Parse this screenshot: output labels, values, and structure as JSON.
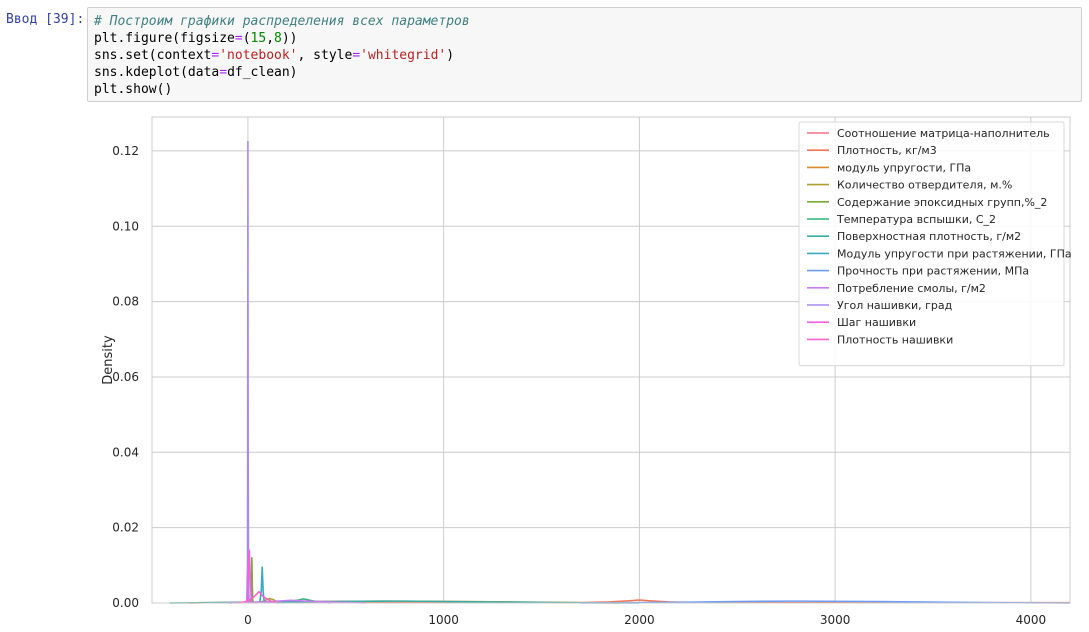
{
  "cell": {
    "prompt": "Ввод [39]:",
    "code_lines": [
      [
        {
          "t": "# Построим графики распределения всех параметров",
          "c": "comment"
        }
      ],
      [
        {
          "t": "plt.figure(figsize"
        },
        {
          "t": "=",
          "c": "op"
        },
        {
          "t": "("
        },
        {
          "t": "15",
          "c": "number"
        },
        {
          "t": ","
        },
        {
          "t": "8",
          "c": "number"
        },
        {
          "t": "))"
        }
      ],
      [
        {
          "t": "sns.set(context"
        },
        {
          "t": "=",
          "c": "op"
        },
        {
          "t": "'notebook'",
          "c": "string"
        },
        {
          "t": ", style"
        },
        {
          "t": "=",
          "c": "op"
        },
        {
          "t": "'whitegrid'",
          "c": "string"
        },
        {
          "t": ")"
        }
      ],
      [
        {
          "t": "sns.kdeplot(data"
        },
        {
          "t": "=",
          "c": "op"
        },
        {
          "t": "df_clean)"
        }
      ],
      [
        {
          "t": "plt.show()"
        }
      ]
    ]
  },
  "chart_data": {
    "type": "line",
    "title": "",
    "xlabel": "",
    "ylabel": "Density",
    "xlim": [
      -490,
      4200
    ],
    "ylim": [
      0,
      0.129
    ],
    "xticks": [
      0,
      1000,
      2000,
      3000,
      4000
    ],
    "yticks": [
      0.0,
      0.02,
      0.04,
      0.06,
      0.08,
      0.1,
      0.12
    ],
    "ytick_labels": [
      "0.00",
      "0.02",
      "0.04",
      "0.06",
      "0.08",
      "0.10",
      "0.12"
    ],
    "grid": true,
    "legend_position": "top-right",
    "series": [
      {
        "name": "Соотношение матрица-наполнитель",
        "color": "#f77189",
        "x": [
          -1,
          0,
          1.5,
          2.8,
          4,
          6
        ],
        "y": [
          0,
          0.004,
          0.035,
          0.012,
          0.002,
          0
        ]
      },
      {
        "name": "Плотность, кг/м3",
        "color": "#f7754f",
        "x": [
          -250,
          1700,
          1850,
          1950,
          2000,
          2050,
          2150,
          2300,
          4200
        ],
        "y": [
          0.0001,
          0.0001,
          0.0003,
          0.0006,
          0.0008,
          0.0006,
          0.0003,
          0.0001,
          0.0001
        ]
      },
      {
        "name": "модуль упругости, ГПа",
        "color": "#dc8932",
        "x": [
          -300,
          0,
          300,
          700,
          1100,
          1500,
          1900
        ],
        "y": [
          0,
          0.0002,
          0.0004,
          0.0005,
          0.0004,
          0.0002,
          0
        ]
      },
      {
        "name": "Количество отвердителя, м.%",
        "color": "#ae9d31",
        "x": [
          40,
          80,
          110,
          130,
          150,
          180
        ],
        "y": [
          0,
          0.0005,
          0.0012,
          0.0009,
          0.0003,
          0
        ]
      },
      {
        "name": "Содержание эпоксидных групп,%_2",
        "color": "#77ab31",
        "x": [
          14,
          18,
          20,
          22,
          24,
          28
        ],
        "y": [
          0,
          0.002,
          0.012,
          0.006,
          0.001,
          0
        ]
      },
      {
        "name": "Температура вспышки, С_2",
        "color": "#33b07a",
        "x": [
          150,
          220,
          260,
          285,
          310,
          350,
          420
        ],
        "y": [
          0,
          0.0005,
          0.0008,
          0.0011,
          0.0008,
          0.0004,
          0
        ]
      },
      {
        "name": "Поверхностная плотность, г/м2",
        "color": "#36ada4",
        "x": [
          -400,
          0,
          400,
          800,
          1200,
          1600,
          2000
        ],
        "y": [
          0,
          0.0002,
          0.0004,
          0.0005,
          0.0003,
          0.0001,
          0
        ]
      },
      {
        "name": "Модуль упругости при растяжении, ГПа",
        "color": "#38a9c5",
        "x": [
          60,
          68,
          73,
          78,
          84
        ],
        "y": [
          0,
          0.003,
          0.0095,
          0.003,
          0
        ]
      },
      {
        "name": "Прочность при растяжении, МПа",
        "color": "#6e9bf4",
        "x": [
          1700,
          2200,
          2500,
          2800,
          3200,
          3800,
          4200
        ],
        "y": [
          0,
          0.0002,
          0.0004,
          0.0005,
          0.0004,
          0.0001,
          0
        ]
      },
      {
        "name": "Потребление смолы, г/м2",
        "color": "#cc7af4",
        "x": [
          -100,
          50,
          150,
          220,
          300,
          450,
          600
        ],
        "y": [
          0,
          0.0002,
          0.0005,
          0.0007,
          0.0005,
          0.0002,
          0
        ]
      },
      {
        "name": "Угол нашивки, град",
        "color": "#a58af4",
        "x": [
          -6,
          -2,
          -0.5,
          0,
          0.5,
          2,
          6
        ],
        "y": [
          0,
          0.01,
          0.08,
          0.1225,
          0.08,
          0.01,
          0
        ]
      },
      {
        "name": "Шаг нашивки",
        "color": "#f461dd",
        "x": [
          -4,
          0,
          4,
          7,
          10,
          14,
          18
        ],
        "y": [
          0,
          0.004,
          0.012,
          0.014,
          0.01,
          0.004,
          0
        ]
      },
      {
        "name": "Плотность нашивки",
        "color": "#f565cc",
        "x": [
          -50,
          0,
          30,
          57,
          80,
          120,
          160
        ],
        "y": [
          0,
          0.0005,
          0.0016,
          0.003,
          0.0016,
          0.0004,
          0
        ]
      }
    ]
  }
}
